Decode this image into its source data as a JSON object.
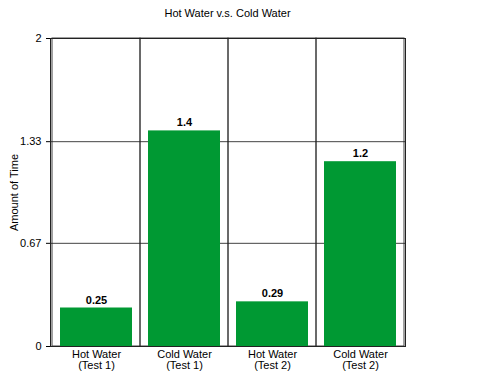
{
  "chart_data": {
    "type": "bar",
    "title": "Hot Water v.s. Cold Water",
    "y_label": "Amount of Time",
    "categories": [
      "Hot Water\n(Test 1)",
      "Cold Water\n(Test 1)",
      "Hot Water\n(Test 2)",
      "Cold Water\n(Test 2)"
    ],
    "values": [
      0.25,
      1.4,
      0.29,
      1.2
    ],
    "color": "#009933",
    "ylim": [
      0,
      2
    ],
    "yticks": [
      0,
      0.67,
      1.33,
      2
    ],
    "grid": true,
    "data_labels": true
  }
}
